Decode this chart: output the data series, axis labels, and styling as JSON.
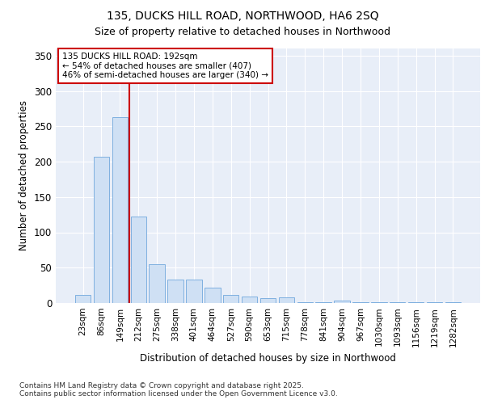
{
  "title_line1": "135, DUCKS HILL ROAD, NORTHWOOD, HA6 2SQ",
  "title_line2": "Size of property relative to detached houses in Northwood",
  "xlabel": "Distribution of detached houses by size in Northwood",
  "ylabel": "Number of detached properties",
  "bar_labels": [
    "23sqm",
    "86sqm",
    "149sqm",
    "212sqm",
    "275sqm",
    "338sqm",
    "401sqm",
    "464sqm",
    "527sqm",
    "590sqm",
    "653sqm",
    "715sqm",
    "778sqm",
    "841sqm",
    "904sqm",
    "967sqm",
    "1030sqm",
    "1093sqm",
    "1156sqm",
    "1219sqm",
    "1282sqm"
  ],
  "bar_values": [
    12,
    207,
    263,
    122,
    55,
    33,
    33,
    22,
    12,
    9,
    7,
    8,
    1,
    1,
    3,
    1,
    1,
    1,
    1,
    1,
    1
  ],
  "bar_color": "#cfe0f4",
  "bar_edge_color": "#7fb0e0",
  "red_line_x": 2.5,
  "red_line_color": "#cc0000",
  "annotation_text": "135 DUCKS HILL ROAD: 192sqm\n← 54% of detached houses are smaller (407)\n46% of semi-detached houses are larger (340) →",
  "annotation_box_color": "#ffffff",
  "annotation_box_edge": "#cc0000",
  "ylim": [
    0,
    360
  ],
  "yticks": [
    0,
    50,
    100,
    150,
    200,
    250,
    300,
    350
  ],
  "plot_bg_color": "#e8eef8",
  "figure_bg_color": "#ffffff",
  "grid_color": "#ffffff",
  "footer_line1": "Contains HM Land Registry data © Crown copyright and database right 2025.",
  "footer_line2": "Contains public sector information licensed under the Open Government Licence v3.0."
}
